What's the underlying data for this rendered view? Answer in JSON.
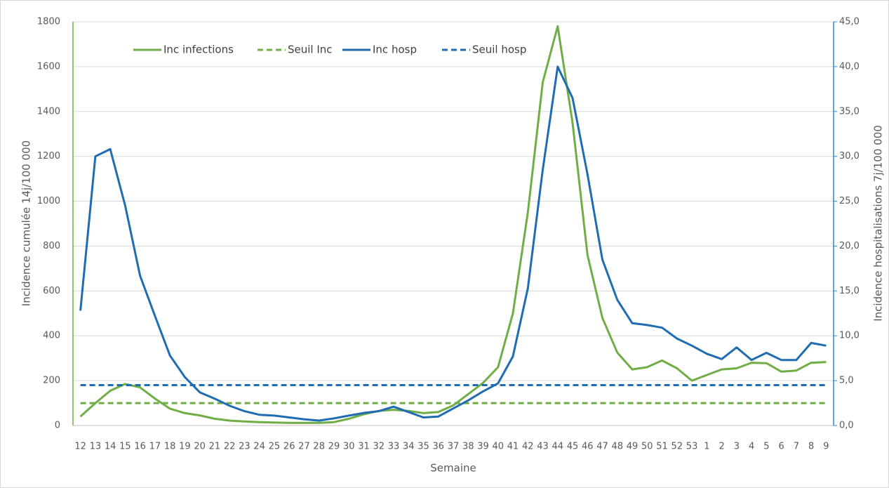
{
  "chart_data": {
    "type": "line",
    "y_label": "Incidence cumulée 14j/100 000",
    "y2_label": "Incidence hospitalisations 7j/100 000",
    "x_label": "Semaine",
    "categories": [
      "12",
      "13",
      "14",
      "15",
      "16",
      "17",
      "18",
      "19",
      "20",
      "21",
      "22",
      "23",
      "24",
      "25",
      "26",
      "27",
      "28",
      "29",
      "30",
      "31",
      "32",
      "33",
      "34",
      "35",
      "36",
      "37",
      "38",
      "39",
      "40",
      "41",
      "42",
      "43",
      "44",
      "45",
      "46",
      "47",
      "48",
      "49",
      "50",
      "51",
      "52",
      "53",
      "1",
      "2",
      "3",
      "4",
      "5",
      "6",
      "7",
      "8",
      "9"
    ],
    "series": [
      {
        "name": "Inc infections",
        "color": "#70ad47",
        "dashed": false,
        "values": [
          40,
          100,
          155,
          185,
          170,
          120,
          75,
          55,
          45,
          30,
          22,
          18,
          15,
          13,
          12,
          12,
          12,
          15,
          30,
          50,
          65,
          70,
          65,
          55,
          60,
          90,
          140,
          190,
          260,
          500,
          950,
          1530,
          1780,
          1350,
          760,
          480,
          325,
          250,
          260,
          290,
          255,
          200,
          225,
          250,
          255,
          280,
          278,
          240,
          245,
          280,
          283
        ]
      },
      {
        "name": "Seuil Inc",
        "color": "#70ad47",
        "dashed": true,
        "values": [
          100,
          100,
          100,
          100,
          100,
          100,
          100,
          100,
          100,
          100,
          100,
          100,
          100,
          100,
          100,
          100,
          100,
          100,
          100,
          100,
          100,
          100,
          100,
          100,
          100,
          100,
          100,
          100,
          100,
          100,
          100,
          100,
          100,
          100,
          100,
          100,
          100,
          100,
          100,
          100,
          100,
          100,
          100,
          100,
          100,
          100,
          100,
          100,
          100,
          100,
          100
        ]
      },
      {
        "name": "Inc hosp",
        "color": "#1f6cb3",
        "dashed": false,
        "axis": "y2",
        "values": [
          12.8,
          30,
          30.8,
          24.5,
          16.7,
          12.2,
          7.8,
          5.4,
          3.7,
          3.0,
          2.2,
          1.6,
          1.2,
          1.1,
          0.9,
          0.7,
          0.55,
          0.8,
          1.1,
          1.4,
          1.6,
          2.1,
          1.5,
          0.9,
          1.0,
          1.9,
          2.8,
          3.8,
          4.7,
          7.7,
          15.3,
          28.5,
          40,
          36.5,
          28,
          18.5,
          14,
          11.4,
          11.2,
          10.9,
          9.7,
          8.9,
          8.0,
          7.4,
          8.7,
          7.3,
          8.1,
          7.3,
          7.3,
          9.2,
          8.9
        ]
      },
      {
        "name": "Seuil hosp",
        "color": "#1f6cb3",
        "dashed": true,
        "axis": "y2",
        "values": [
          4.5,
          4.5,
          4.5,
          4.5,
          4.5,
          4.5,
          4.5,
          4.5,
          4.5,
          4.5,
          4.5,
          4.5,
          4.5,
          4.5,
          4.5,
          4.5,
          4.5,
          4.5,
          4.5,
          4.5,
          4.5,
          4.5,
          4.5,
          4.5,
          4.5,
          4.5,
          4.5,
          4.5,
          4.5,
          4.5,
          4.5,
          4.5,
          4.5,
          4.5,
          4.5,
          4.5,
          4.5,
          4.5,
          4.5,
          4.5,
          4.5,
          4.5,
          4.5,
          4.5,
          4.5,
          4.5,
          4.5,
          4.5,
          4.5,
          4.5,
          4.5
        ]
      }
    ],
    "ylim": [
      0,
      1800
    ],
    "yticks": [
      0,
      200,
      400,
      600,
      800,
      1000,
      1200,
      1400,
      1600,
      1800
    ],
    "y2lim": [
      0,
      45
    ],
    "y2ticks": [
      {
        "value": 0,
        "label": "0,0"
      },
      {
        "value": 5,
        "label": "5,0"
      },
      {
        "value": 10,
        "label": "10,0"
      },
      {
        "value": 15,
        "label": "15,0"
      },
      {
        "value": 20,
        "label": "20,0"
      },
      {
        "value": 25,
        "label": "25,0"
      },
      {
        "value": 30,
        "label": "30,0"
      },
      {
        "value": 35,
        "label": "35,0"
      },
      {
        "value": 40,
        "label": "40,0"
      },
      {
        "value": 45,
        "label": "45,0"
      }
    ],
    "grid": true,
    "legend": "top"
  }
}
